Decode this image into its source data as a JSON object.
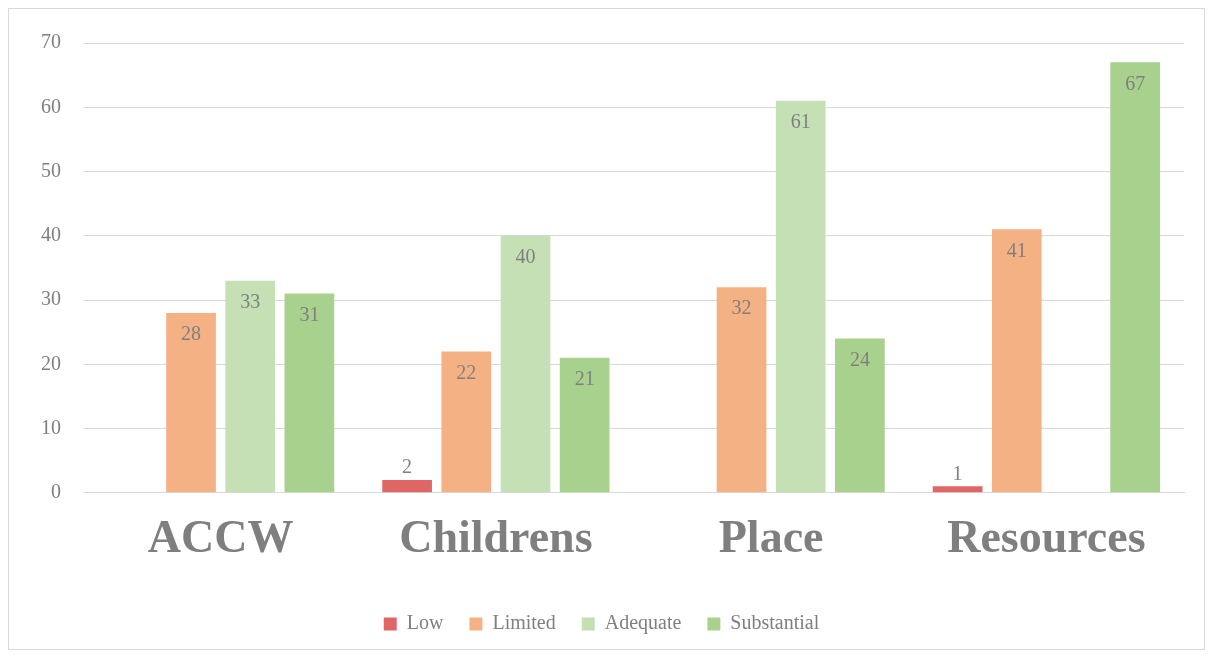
{
  "chart_data": {
    "type": "bar",
    "categories": [
      "ACCW",
      "Childrens",
      "Place",
      "Resources"
    ],
    "series": [
      {
        "name": "Low",
        "color": "#e06666",
        "values": [
          null,
          2,
          null,
          1
        ]
      },
      {
        "name": "Limited",
        "color": "#f4b183",
        "values": [
          28,
          22,
          32,
          41
        ]
      },
      {
        "name": "Adequate",
        "color": "#c5e0b4",
        "values": [
          33,
          40,
          61,
          null
        ]
      },
      {
        "name": "Substantial",
        "color": "#a9d18e",
        "values": [
          31,
          21,
          24,
          67
        ]
      }
    ],
    "ylim": [
      0,
      70
    ],
    "yticks": [
      0,
      10,
      20,
      30,
      40,
      50,
      60,
      70
    ],
    "grid": "y",
    "legend": "bottom",
    "data_labels": true
  }
}
